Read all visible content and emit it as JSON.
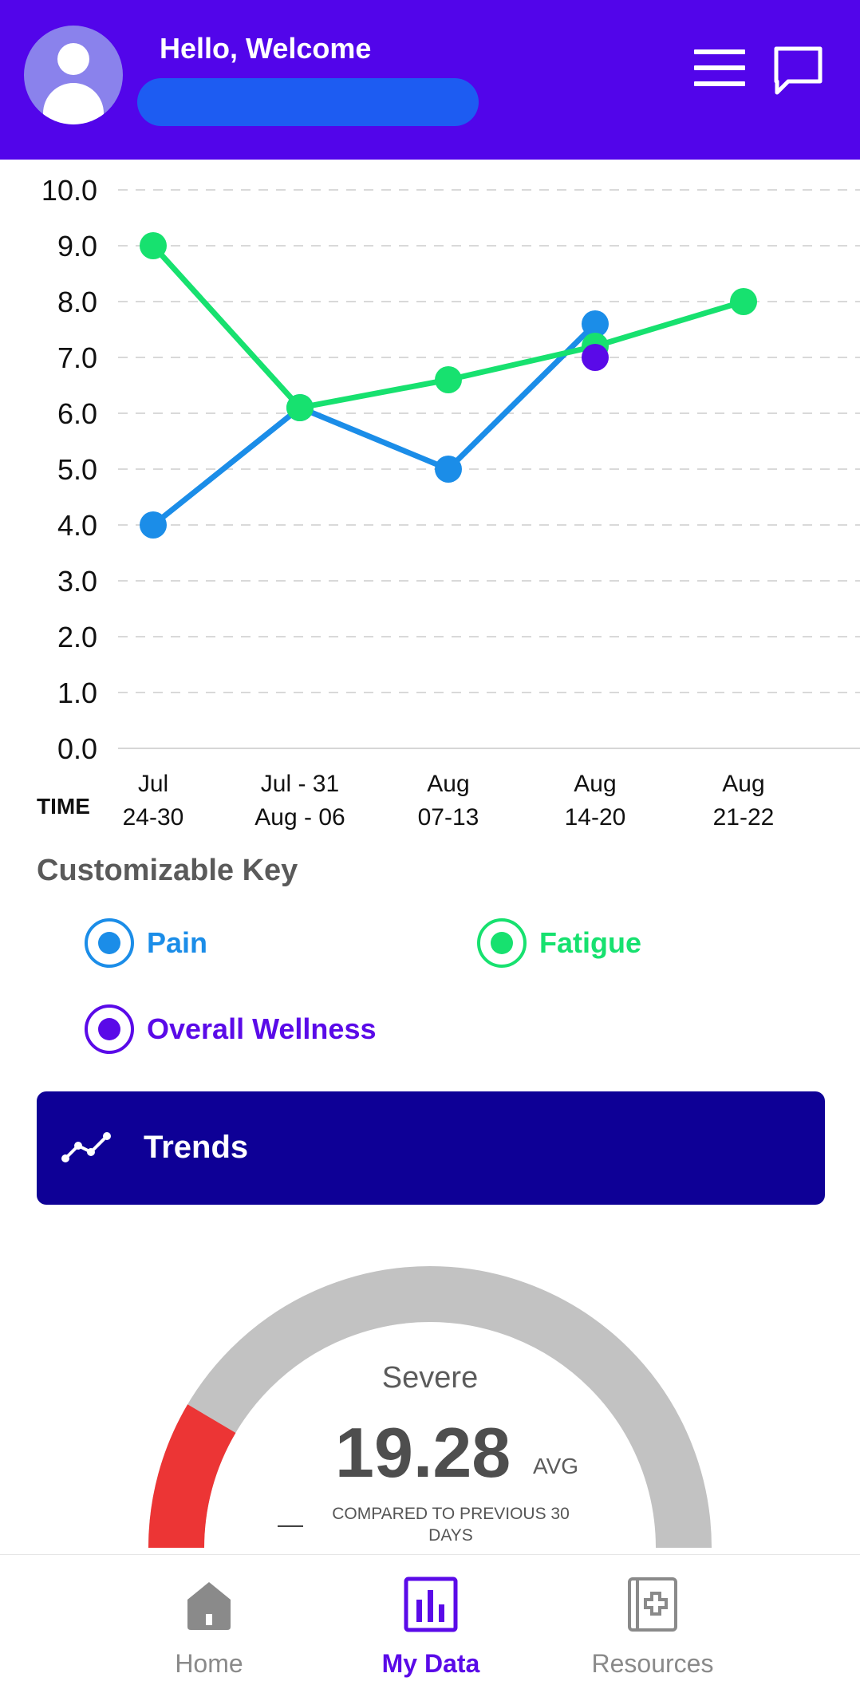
{
  "header": {
    "greeting": "Hello, Welcome",
    "icons": {
      "avatar": "user-avatar-icon",
      "menu": "hamburger-menu-icon",
      "chat": "chat-bubble-icon"
    },
    "background_color": "#5205ea"
  },
  "chart_data": {
    "type": "line",
    "xlabel": "TIME",
    "ylabel": "",
    "ylim": [
      0,
      10
    ],
    "y_ticks": [
      "10.0",
      "9.0",
      "8.0",
      "7.0",
      "6.0",
      "5.0",
      "4.0",
      "3.0",
      "2.0",
      "1.0",
      "0.0"
    ],
    "categories": [
      [
        "Jul",
        "24-30"
      ],
      [
        "Jul - 31",
        "Aug - 06"
      ],
      [
        "Aug",
        "07-13"
      ],
      [
        "Aug",
        "14-20"
      ],
      [
        "Aug",
        "21-22"
      ]
    ],
    "grid": true,
    "series": [
      {
        "name": "Pain",
        "color": "#1b8de8",
        "values": [
          4.0,
          6.1,
          5.0,
          7.6,
          null
        ]
      },
      {
        "name": "Fatigue",
        "color": "#17e16f",
        "values": [
          9.0,
          6.1,
          6.6,
          7.2,
          8.0
        ]
      },
      {
        "name": "Overall Wellness",
        "color": "#5a0ae8",
        "values": [
          null,
          null,
          null,
          7.0,
          null
        ]
      }
    ]
  },
  "key": {
    "title": "Customizable Key",
    "items": [
      {
        "label": "Pain",
        "color": "#1b8de8"
      },
      {
        "label": "Fatigue",
        "color": "#17e16f"
      },
      {
        "label": "Overall Wellness",
        "color": "#5a0ae8"
      }
    ]
  },
  "trends": {
    "label": "Trends",
    "icon": "trend-line-icon",
    "color": "#0e0096"
  },
  "gauge": {
    "state": "Severe",
    "value": "19.28",
    "unit": "AVG",
    "dash": "—",
    "compare": "COMPARED TO PREVIOUS 30 DAYS",
    "fraction": 0.17,
    "fill_color": "#ec3535",
    "track_color": "#c2c2c2"
  },
  "nav": {
    "items": [
      {
        "label": "Home",
        "icon": "home-icon",
        "active": false
      },
      {
        "label": "My Data",
        "icon": "bar-chart-icon",
        "active": true
      },
      {
        "label": "Resources",
        "icon": "medical-book-icon",
        "active": false
      }
    ],
    "active_color": "#5a0ae8",
    "inactive_color": "#8a8a8a"
  }
}
